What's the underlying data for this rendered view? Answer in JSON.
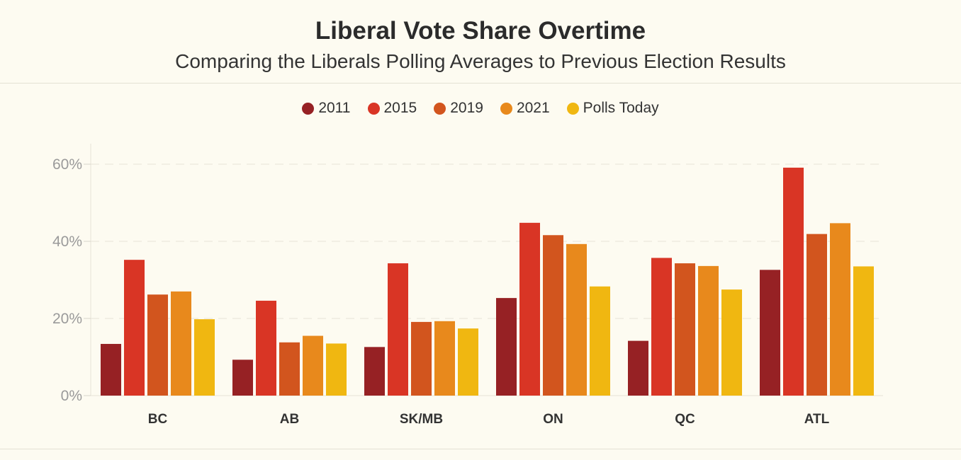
{
  "header": {
    "title": "Liberal Vote Share Overtime",
    "subtitle": "Comparing the Liberals Polling Averages to Previous Election Results"
  },
  "chart_data": {
    "type": "bar",
    "title": "Liberal Vote Share Overtime",
    "subtitle": "Comparing the Liberals Polling Averages to Previous Election Results",
    "categories": [
      "BC",
      "AB",
      "SK/MB",
      "ON",
      "QC",
      "ATL"
    ],
    "series": [
      {
        "name": "2011",
        "color": "#962124",
        "values": [
          13.4,
          9.3,
          12.6,
          25.3,
          14.2,
          32.6
        ]
      },
      {
        "name": "2015",
        "color": "#d93525",
        "values": [
          35.2,
          24.6,
          34.3,
          44.8,
          35.7,
          59.1
        ]
      },
      {
        "name": "2019",
        "color": "#d2551e",
        "values": [
          26.2,
          13.8,
          19.1,
          41.6,
          34.3,
          41.9
        ]
      },
      {
        "name": "2021",
        "color": "#e8891c",
        "values": [
          27.0,
          15.5,
          19.3,
          39.3,
          33.6,
          44.7
        ]
      },
      {
        "name": "Polls Today",
        "color": "#f0b711",
        "values": [
          19.8,
          13.5,
          17.4,
          28.3,
          27.5,
          33.5
        ]
      }
    ],
    "xlabel": "",
    "ylabel": "",
    "ylim": [
      0,
      60
    ],
    "yticks": [
      "0%",
      "20%",
      "40%",
      "60%"
    ],
    "grid": true,
    "legend_position": "top-center"
  }
}
